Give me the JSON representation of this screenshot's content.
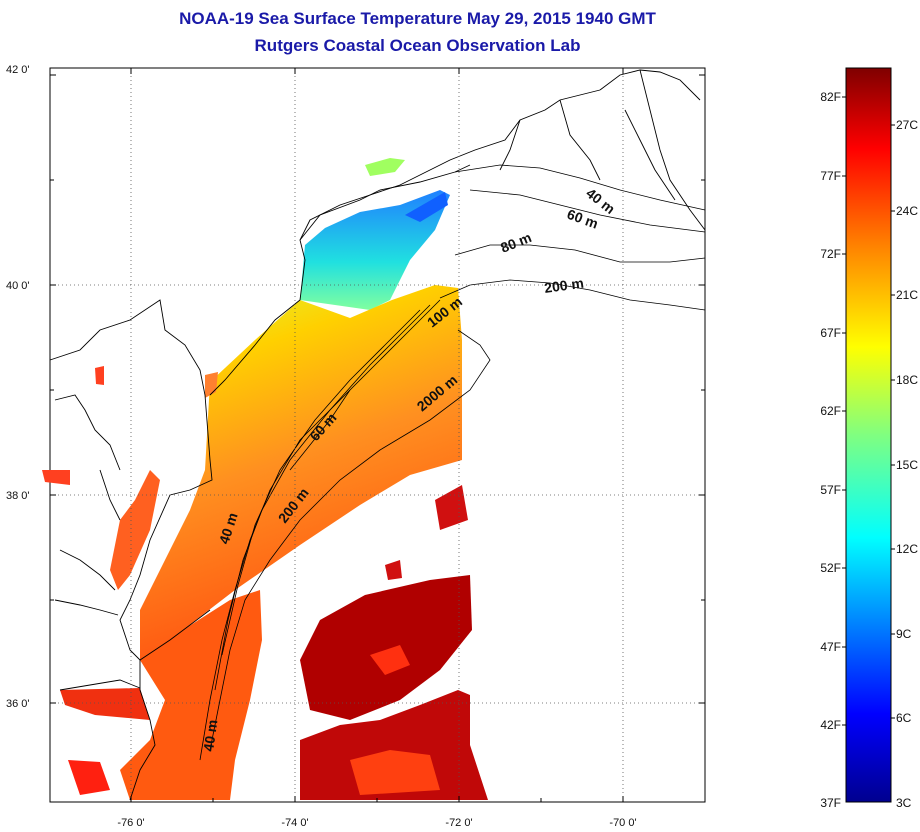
{
  "header": {
    "title_line1": "NOAA-19 Sea Surface Temperature May 29, 2015 1940 GMT",
    "title_line2": "Rutgers Coastal Ocean Observation Lab"
  },
  "map": {
    "lat_labels": [
      "42 0'",
      "40 0'",
      "38 0'",
      "36 0'"
    ],
    "lon_labels": [
      "-76 0'",
      "-74 0'",
      "-72 0'",
      "-70 0'"
    ],
    "contour_labels": [
      "40 m",
      "60 m",
      "80 m",
      "200 m",
      "100 m",
      "2000 m",
      "60 m",
      "200 m",
      "40 m",
      "40 m"
    ],
    "colors": {
      "land": "#ffffff",
      "coast": "#000000",
      "grid": "#555555"
    }
  },
  "colorbar": {
    "f_labels": [
      "82F",
      "77F",
      "72F",
      "67F",
      "62F",
      "57F",
      "52F",
      "47F",
      "42F",
      "37F"
    ],
    "c_labels": [
      "27C",
      "24C",
      "21C",
      "18C",
      "15C",
      "12C",
      "9C",
      "6C",
      "3C"
    ],
    "colors": [
      "#7f0000",
      "#ff0000",
      "#ff8000",
      "#ffff00",
      "#80ff80",
      "#00ffff",
      "#0080ff",
      "#0000ff",
      "#00008f"
    ]
  }
}
